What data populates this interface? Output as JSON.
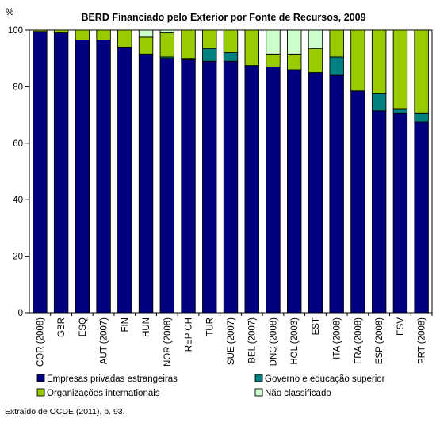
{
  "chart_data": {
    "type": "bar",
    "stacked": true,
    "title": "BERD Financiado pelo Exterior por Fonte de Recursos, 2009",
    "ylabel": "%",
    "ylim": [
      0,
      100
    ],
    "yticks": [
      0,
      20,
      40,
      60,
      80,
      100
    ],
    "grid": false,
    "legend_position": "bottom",
    "categories": [
      "COR (2008)",
      "GBR",
      "ESQ",
      "AUT (2007)",
      "FIN",
      "HUN",
      "NOR (2008)",
      "REP CH",
      "TUR",
      "SUE (2007)",
      "BEL (2007)",
      "DNC (2008)",
      "HOL (2003)",
      "EST",
      "ITA (2008)",
      "FRA (2008)",
      "ESP (2008)",
      "ESV",
      "PRT (2008)"
    ],
    "series": [
      {
        "name": "Empresas privadas estrangeiras",
        "color": "#000080",
        "values": [
          99.5,
          99.0,
          96.5,
          96.5,
          94.0,
          91.5,
          90.0,
          89.5,
          89.0,
          89.0,
          87.5,
          87.0,
          86.0,
          85.0,
          84.0,
          78.5,
          71.5,
          70.5,
          67.5
        ]
      },
      {
        "name": "Governo e educação superior",
        "color": "#008080",
        "values": [
          0,
          0,
          0,
          0,
          0,
          0,
          0.5,
          0.5,
          4.5,
          3.0,
          0,
          0,
          0,
          0,
          6.5,
          0,
          6.0,
          1.5,
          3.0
        ]
      },
      {
        "name": "Organizações internationais",
        "color": "#99cc00",
        "values": [
          0.5,
          1.0,
          3.5,
          3.5,
          6.0,
          6.0,
          8.5,
          10.0,
          6.5,
          8.0,
          12.5,
          4.5,
          5.5,
          8.5,
          9.5,
          21.5,
          22.5,
          28.0,
          29.5
        ]
      },
      {
        "name": "Não classificado",
        "color": "#ccffcc",
        "values": [
          0,
          0,
          0,
          0,
          0,
          2.5,
          1.0,
          0,
          0,
          0,
          0,
          8.5,
          8.5,
          6.5,
          0,
          0,
          0,
          0,
          0
        ]
      }
    ]
  },
  "source": "Extraído de OCDE (2011), p. 93."
}
